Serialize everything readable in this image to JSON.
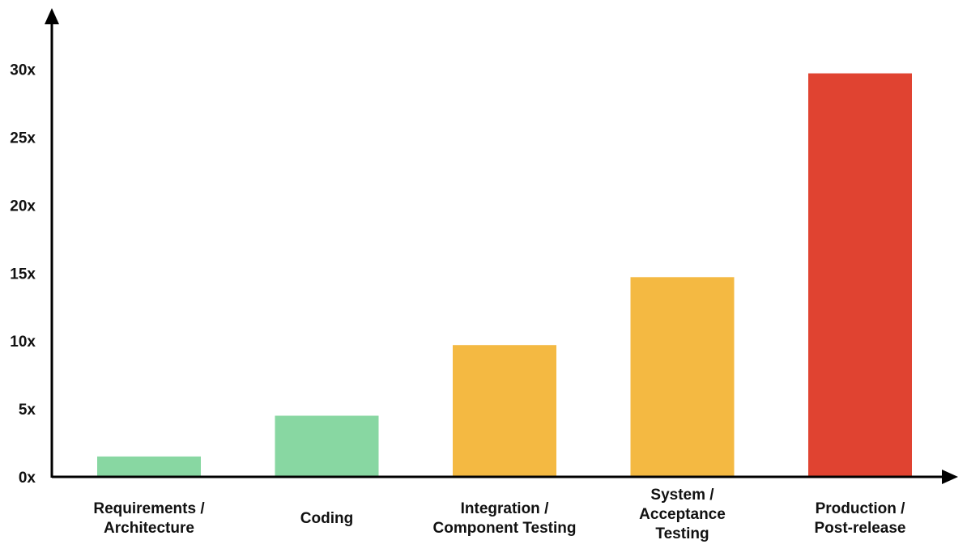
{
  "chart_data": {
    "type": "bar",
    "categories": [
      [
        "Requirements /",
        "Architecture"
      ],
      [
        "Coding"
      ],
      [
        "Integration /",
        "Component Testing"
      ],
      [
        "System /",
        "Acceptance",
        "Testing"
      ],
      [
        "Production /",
        "Post-release"
      ]
    ],
    "values": [
      1.5,
      4.5,
      9.7,
      14.7,
      29.7
    ],
    "bar_colors": [
      "#88d7a2",
      "#88d7a2",
      "#f4b942",
      "#f4b942",
      "#e04331"
    ],
    "yticks": [
      0,
      5,
      10,
      15,
      20,
      25,
      30
    ],
    "ytick_labels": [
      "0x",
      "5x",
      "10x",
      "15x",
      "20x",
      "25x",
      "30x"
    ],
    "ylim": [
      0,
      32
    ],
    "title": "",
    "xlabel": "",
    "ylabel": "",
    "grid": false,
    "legend": "none"
  }
}
